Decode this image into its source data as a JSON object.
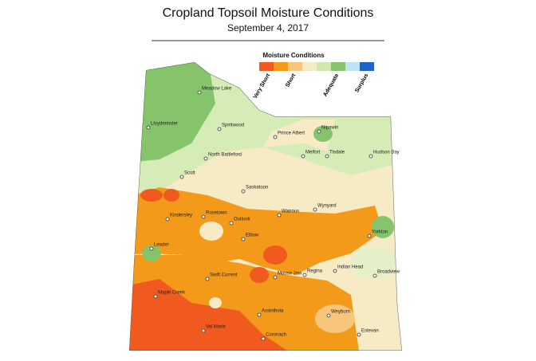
{
  "header": {
    "title": "Cropland Topsoil Moisture Conditions",
    "subtitle": "September 4, 2017"
  },
  "legend": {
    "title": "Moisture Conditions",
    "labels": [
      "Very Short",
      "Short",
      "Adequate",
      "Surplus"
    ]
  },
  "places": [
    {
      "label": "Meadow Lake"
    },
    {
      "label": "Lloydminster"
    },
    {
      "label": "Spiritwood"
    },
    {
      "label": "Prince Albert"
    },
    {
      "label": "Nipawin"
    },
    {
      "label": "Melfort"
    },
    {
      "label": "Tisdale"
    },
    {
      "label": "Hudson Bay"
    },
    {
      "label": "North Battleford"
    },
    {
      "label": "Scott"
    },
    {
      "label": "Saskatoon"
    },
    {
      "label": "Wynyard"
    },
    {
      "label": "Kindersley"
    },
    {
      "label": "Rosetown"
    },
    {
      "label": "Outlook"
    },
    {
      "label": "Watrous"
    },
    {
      "label": "Yorkton"
    },
    {
      "label": "Leader"
    },
    {
      "label": "Elbow"
    },
    {
      "label": "Indian Head"
    },
    {
      "label": "Moose Jaw"
    },
    {
      "label": "Regina"
    },
    {
      "label": "Broadview"
    },
    {
      "label": "Swift Current"
    },
    {
      "label": "Maple Creek"
    },
    {
      "label": "Assiniboia"
    },
    {
      "label": "Weyburn"
    },
    {
      "label": "Val Marie"
    },
    {
      "label": "Coronach"
    },
    {
      "label": "Estevan"
    }
  ]
}
